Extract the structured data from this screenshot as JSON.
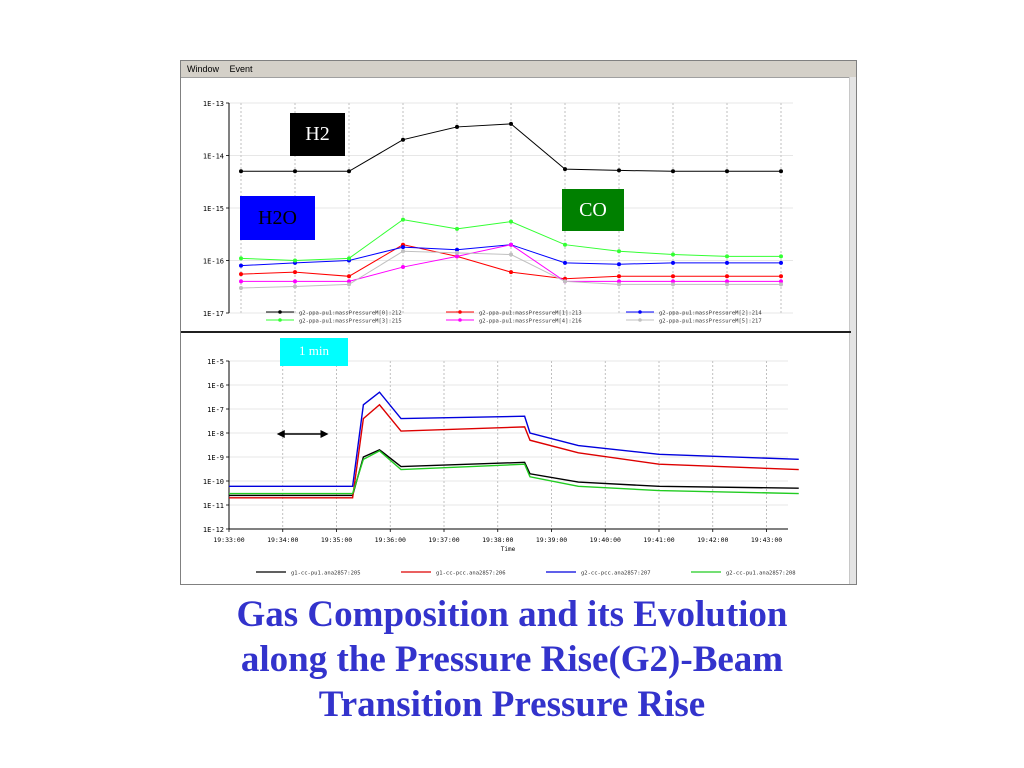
{
  "window": {
    "menu": [
      "Window",
      "Event"
    ]
  },
  "labels": {
    "h2": "H2",
    "h2o": "H2O",
    "co": "CO",
    "one_min": "1 min"
  },
  "caption": {
    "line1": "Gas Composition and its Evolution",
    "line2": "along the Pressure Rise(G2)-Beam",
    "line3": "Transition Pressure Rise"
  },
  "colors": {
    "caption": "#3333cc",
    "h2_label": "#000000",
    "h2o_label": "#0000ff",
    "co_label": "#008000",
    "one_min_label": "#00ffff"
  },
  "chart_data": [
    {
      "type": "line",
      "y_scale": "log",
      "ylim": [
        1e-17,
        1e-13
      ],
      "y_ticks": [
        "1E-13",
        "1E-14",
        "1E-15",
        "1E-16",
        "1E-17"
      ],
      "x_points": 11,
      "grid": true,
      "legend_placement": "bottom",
      "series": [
        {
          "name": "g2-ppa-pu1:massPressureM[0]:212",
          "color": "#000000",
          "values": [
            5e-15,
            5e-15,
            5e-15,
            2e-14,
            3.5e-14,
            4e-14,
            5.5e-15,
            5.2e-15,
            5e-15,
            5e-15,
            5e-15
          ]
        },
        {
          "name": "g2-ppa-pu1:massPressureM[1]:213",
          "color": "#ff0000",
          "values": [
            5.5e-17,
            6e-17,
            5e-17,
            2e-16,
            1.2e-16,
            6e-17,
            4.5e-17,
            5e-17,
            5e-17,
            5e-17,
            5e-17
          ]
        },
        {
          "name": "g2-ppa-pu1:massPressureM[2]:214",
          "color": "#0000ff",
          "values": [
            8e-17,
            9e-17,
            1e-16,
            1.8e-16,
            1.6e-16,
            2e-16,
            9e-17,
            8.5e-17,
            9e-17,
            9e-17,
            9e-17
          ]
        },
        {
          "name": "g2-ppa-pu1:massPressureM[3]:215",
          "color": "#33ff33",
          "values": [
            1.1e-16,
            1e-16,
            1.1e-16,
            6e-16,
            4e-16,
            5.5e-16,
            2e-16,
            1.5e-16,
            1.3e-16,
            1.2e-16,
            1.2e-16
          ]
        },
        {
          "name": "g2-ppa-pu1:massPressureM[4]:216",
          "color": "#ff00ff",
          "values": [
            4e-17,
            4e-17,
            4e-17,
            7.5e-17,
            1.2e-16,
            2e-16,
            4e-17,
            4e-17,
            4e-17,
            4e-17,
            4e-17
          ]
        },
        {
          "name": "g2-ppa-pu1:massPressureM[5]:217",
          "color": "#c0c0c0",
          "values": [
            3e-17,
            3.2e-17,
            3.5e-17,
            1.5e-16,
            1.4e-16,
            1.3e-16,
            4e-17,
            3.5e-17,
            3.5e-17,
            3.5e-17,
            3.5e-17
          ]
        }
      ]
    },
    {
      "type": "line",
      "y_scale": "log",
      "ylim": [
        1e-12,
        1e-05
      ],
      "y_ticks": [
        "1E-5",
        "1E-6",
        "1E-7",
        "1E-8",
        "1E-9",
        "1E-10",
        "1E-11",
        "1E-12"
      ],
      "x_ticks": [
        "19:33:00",
        "19:34:00",
        "19:35:00",
        "19:36:00",
        "19:37:00",
        "19:38:00",
        "19:39:00",
        "19:40:00",
        "19:41:00",
        "19:42:00",
        "19:43:00"
      ],
      "xlabel": "Time",
      "grid": true,
      "legend_placement": "bottom",
      "series": [
        {
          "name": "g1-cc-pu1.ana2857:205",
          "color": "#000000",
          "x": [
            0,
            2.3,
            2.5,
            2.8,
            3.2,
            5.5,
            5.6,
            6.5,
            8,
            10.6
          ],
          "values": [
            2.5e-11,
            2.5e-11,
            1e-09,
            2e-09,
            4e-10,
            6e-10,
            2e-10,
            9e-11,
            6e-11,
            5e-11
          ]
        },
        {
          "name": "g1-cc-pcc.ana2857:206",
          "color": "#dd0000",
          "x": [
            0,
            2.3,
            2.5,
            2.8,
            3.2,
            5.5,
            5.6,
            6.5,
            8,
            10.6
          ],
          "values": [
            2e-11,
            2e-11,
            4e-08,
            1.5e-07,
            1.2e-08,
            1.8e-08,
            5e-09,
            1.5e-09,
            5e-10,
            3e-10
          ]
        },
        {
          "name": "g2-cc-pcc.ana2857:207",
          "color": "#0000dd",
          "x": [
            0,
            2.3,
            2.5,
            2.8,
            3.2,
            5.5,
            5.6,
            6.5,
            8,
            10.6
          ],
          "values": [
            6e-11,
            6e-11,
            1.5e-07,
            5e-07,
            4e-08,
            5e-08,
            1e-08,
            3e-09,
            1.3e-09,
            8e-10
          ]
        },
        {
          "name": "g2-cc-pu1.ana2857:208",
          "color": "#22cc22",
          "x": [
            0,
            2.3,
            2.5,
            2.8,
            3.2,
            5.5,
            5.6,
            6.5,
            8,
            10.6
          ],
          "values": [
            3e-11,
            3e-11,
            8e-10,
            1.8e-09,
            3e-10,
            5e-10,
            1.5e-10,
            6e-11,
            4e-11,
            3e-11
          ]
        }
      ]
    }
  ]
}
